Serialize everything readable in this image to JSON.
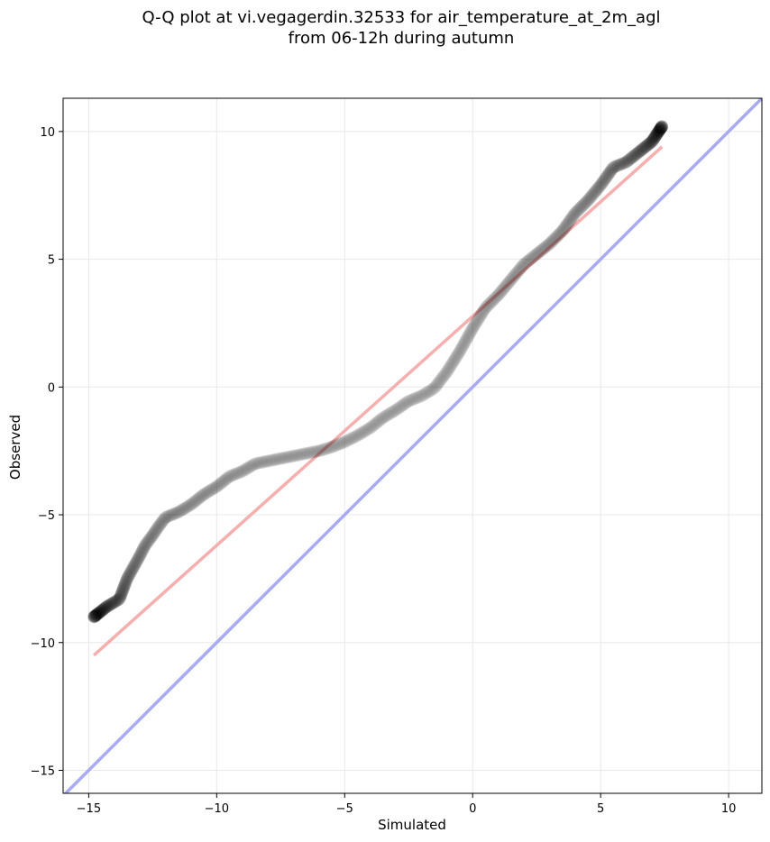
{
  "chart_data": {
    "type": "scatter",
    "title_lines": [
      "Q-Q plot at vi.vegagerdin.32533 for air_temperature_at_2m_agl",
      "from 06-12h during autumn"
    ],
    "xlabel": "Simulated",
    "ylabel": "Observed",
    "xlim": [
      -16.0,
      11.3
    ],
    "ylim": [
      -15.9,
      11.3
    ],
    "xticks": [
      -15,
      -10,
      -5,
      0,
      5,
      10
    ],
    "yticks": [
      -15,
      -10,
      -5,
      0,
      5,
      10
    ],
    "xtick_labels": [
      "−15",
      "−10",
      "−5",
      "0",
      "5",
      "10"
    ],
    "ytick_labels": [
      "−15",
      "−10",
      "−5",
      "0",
      "5",
      "10"
    ],
    "grid": true,
    "quantile_curve": [
      [
        -14.8,
        -9.0
      ],
      [
        -14.3,
        -8.6
      ],
      [
        -13.8,
        -8.3
      ],
      [
        -13.5,
        -7.5
      ],
      [
        -13.0,
        -6.6
      ],
      [
        -12.8,
        -6.2
      ],
      [
        -12.5,
        -5.8
      ],
      [
        -12.3,
        -5.5
      ],
      [
        -12.0,
        -5.1
      ],
      [
        -11.5,
        -4.9
      ],
      [
        -11.0,
        -4.6
      ],
      [
        -10.5,
        -4.2
      ],
      [
        -10.0,
        -3.9
      ],
      [
        -9.5,
        -3.5
      ],
      [
        -9.0,
        -3.3
      ],
      [
        -8.5,
        -3.0
      ],
      [
        -8.0,
        -2.9
      ],
      [
        -7.5,
        -2.8
      ],
      [
        -7.0,
        -2.7
      ],
      [
        -6.5,
        -2.6
      ],
      [
        -6.0,
        -2.5
      ],
      [
        -5.5,
        -2.35
      ],
      [
        -5.0,
        -2.15
      ],
      [
        -4.5,
        -1.9
      ],
      [
        -4.0,
        -1.6
      ],
      [
        -3.5,
        -1.2
      ],
      [
        -3.0,
        -0.9
      ],
      [
        -2.5,
        -0.55
      ],
      [
        -2.0,
        -0.35
      ],
      [
        -1.5,
        -0.05
      ],
      [
        -1.0,
        0.6
      ],
      [
        -0.5,
        1.4
      ],
      [
        0.0,
        2.3
      ],
      [
        0.5,
        3.1
      ],
      [
        1.0,
        3.6
      ],
      [
        1.5,
        4.2
      ],
      [
        2.0,
        4.8
      ],
      [
        2.5,
        5.2
      ],
      [
        3.0,
        5.6
      ],
      [
        3.5,
        6.1
      ],
      [
        4.0,
        6.8
      ],
      [
        4.5,
        7.3
      ],
      [
        5.0,
        7.9
      ],
      [
        5.5,
        8.6
      ],
      [
        6.0,
        8.8
      ],
      [
        6.5,
        9.2
      ],
      [
        7.0,
        9.6
      ],
      [
        7.4,
        10.2
      ]
    ],
    "fit_line": {
      "color": "#f4a6a6",
      "from": [
        -14.8,
        -10.5
      ],
      "to": [
        7.4,
        9.4
      ]
    },
    "identity_line": {
      "color": "#a8aaf4"
    },
    "marker_color": "#000000"
  }
}
